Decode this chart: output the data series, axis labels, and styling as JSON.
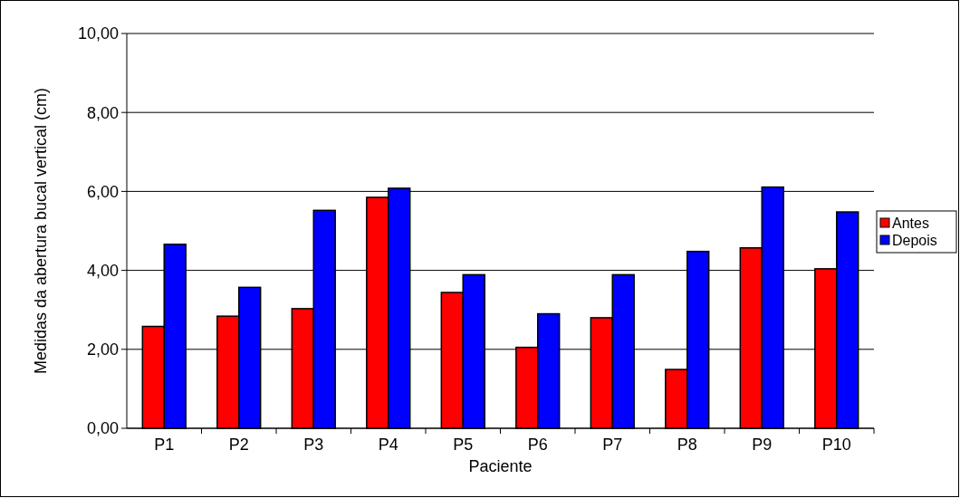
{
  "chart_data": {
    "type": "bar",
    "xlabel": "Paciente",
    "ylabel": "Medidas da abertura bucal vertical (cm)",
    "categories": [
      "P1",
      "P2",
      "P3",
      "P4",
      "P5",
      "P6",
      "P7",
      "P8",
      "P9",
      "P10"
    ],
    "series": [
      {
        "name": "Antes",
        "color": "#ff0000",
        "values": [
          2.58,
          2.84,
          3.03,
          5.85,
          3.44,
          2.05,
          2.8,
          1.49,
          4.57,
          4.04
        ]
      },
      {
        "name": "Depois",
        "color": "#0000ff",
        "values": [
          4.66,
          3.57,
          5.52,
          6.08,
          3.89,
          2.9,
          3.89,
          4.48,
          6.11,
          5.48
        ]
      }
    ],
    "ylim": [
      0,
      10
    ],
    "yticks": [
      {
        "value": 0,
        "label": "0,00"
      },
      {
        "value": 2,
        "label": "2,00"
      },
      {
        "value": 4,
        "label": "4,00"
      },
      {
        "value": 6,
        "label": "6,00"
      },
      {
        "value": 8,
        "label": "8,00"
      },
      {
        "value": 10,
        "label": "10,00"
      }
    ],
    "grid": "y",
    "legend": "right"
  }
}
